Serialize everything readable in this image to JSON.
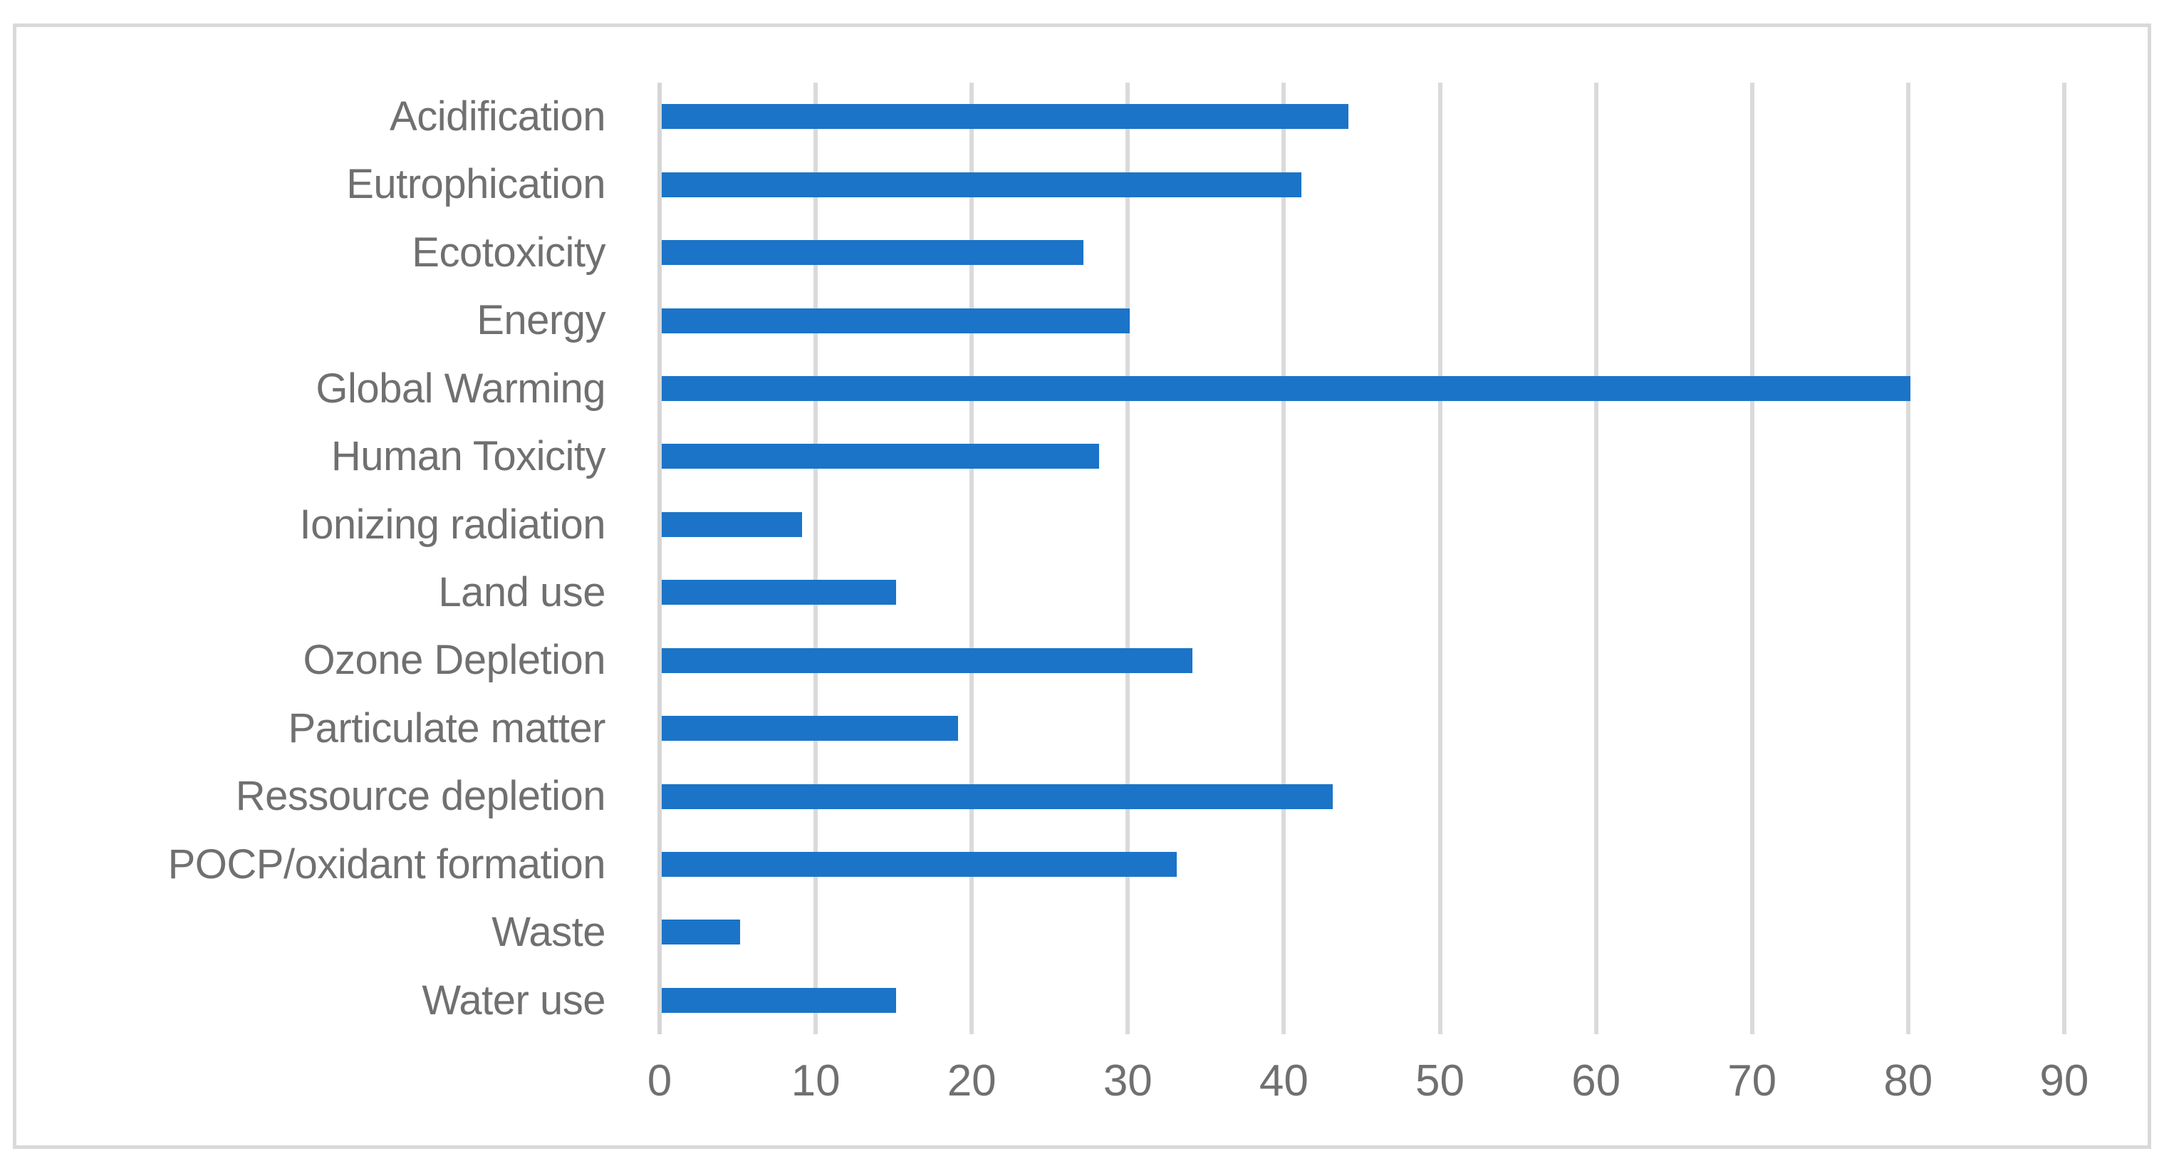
{
  "chart_data": {
    "type": "bar",
    "orientation": "horizontal",
    "title": "",
    "xlabel": "",
    "ylabel": "",
    "categories": [
      "Acidification",
      "Eutrophication",
      "Ecotoxicity",
      "Energy",
      "Global Warming",
      "Human Toxicity",
      "Ionizing radiation",
      "Land use",
      "Ozone Depletion",
      "Particulate matter",
      "Ressource depletion",
      "POCP/oxidant formation",
      "Waste",
      "Water use"
    ],
    "values": [
      44,
      41,
      27,
      30,
      80,
      28,
      9,
      15,
      34,
      19,
      43,
      33,
      5,
      15
    ],
    "xlim": [
      0,
      90
    ],
    "x_ticks": [
      0,
      10,
      20,
      30,
      40,
      50,
      60,
      70,
      80,
      90
    ],
    "grid": "vertical-gridlines",
    "legend": "none",
    "single_series": true,
    "colors": {
      "bar": "#1B74C8",
      "gridline": "#DADADA",
      "axis_line": "#D6D6D6",
      "text": "#707070",
      "frame_border": "#D9D9D9",
      "background": "#FFFFFF"
    }
  }
}
